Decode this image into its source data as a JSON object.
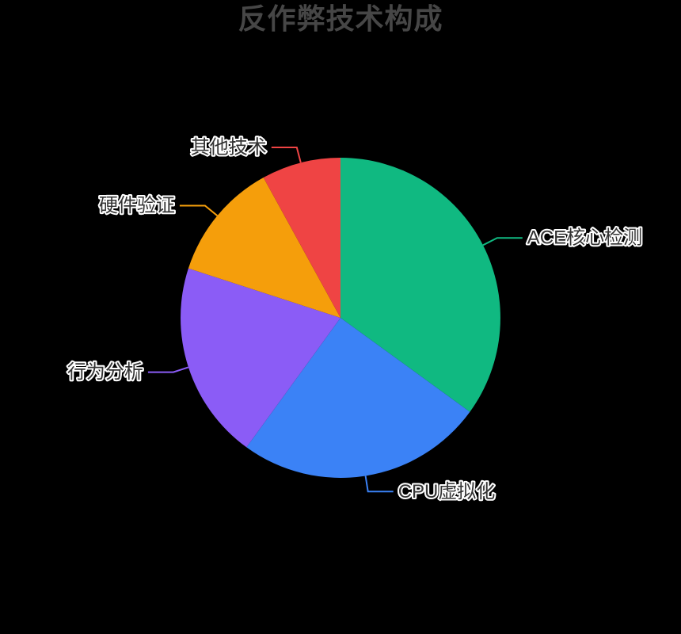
{
  "page": {
    "background_color": "#000000"
  },
  "chart_data": {
    "type": "pie",
    "title": "反作弊技术构成",
    "title_color": "#464646",
    "categories": [
      "ACE核心检测",
      "CPU虚拟化",
      "行为分析",
      "硬件验证",
      "其他技术"
    ],
    "values": [
      35,
      25,
      20,
      12,
      8
    ],
    "colors": [
      "#10b981",
      "#3b82f6",
      "#8b5cf6",
      "#f59e0b",
      "#ef4444"
    ],
    "label_color": "#333333",
    "label_outline_color": "#ffffff",
    "start_angle_deg": 0,
    "direction": "clockwise",
    "legend_position": "none",
    "grid": false,
    "layout": {
      "center": [
        430,
        401
      ],
      "radius": 202,
      "label_line1": 20,
      "label_line2": 32,
      "label_gap": 6
    }
  }
}
